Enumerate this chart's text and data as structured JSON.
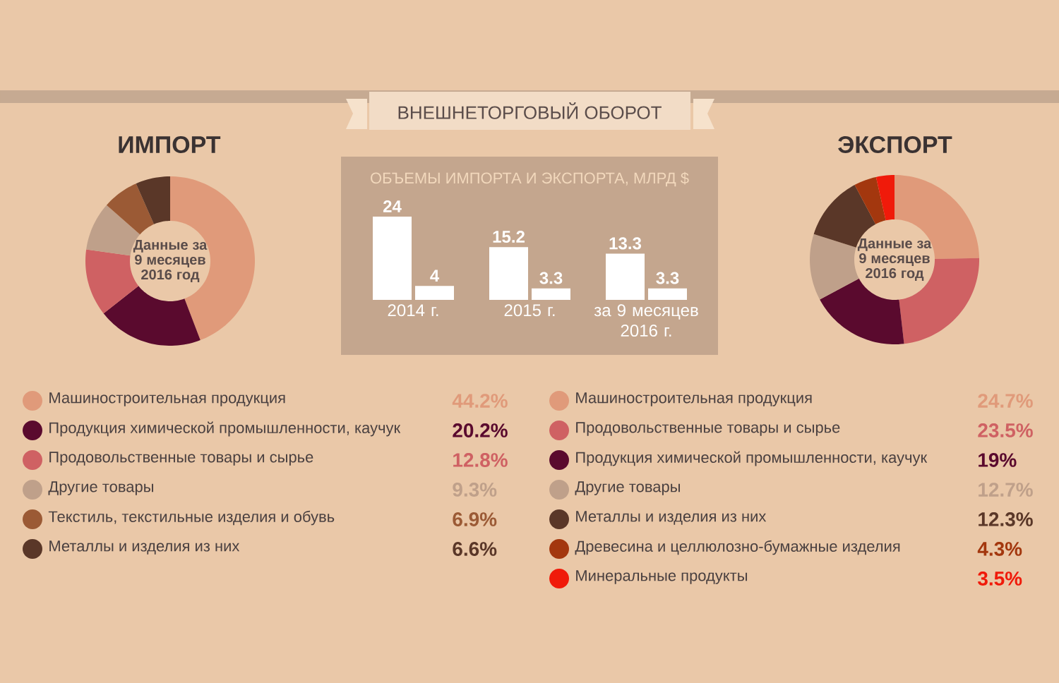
{
  "chart_data": [
    {
      "type": "other",
      "title": "ВНЕШНЕТОРГОВЫЙ ОБОРОТ"
    },
    {
      "type": "donut",
      "title": "ИМПОРТ",
      "categories": [
        "Машиностроительная продукция",
        "Продукция химической промышленности, каучук",
        "Продовольственные товары и сырье",
        "Другие товары",
        "Текстиль, текстильные изделия и обувь",
        "Металлы и изделия из них"
      ],
      "values": [
        44.2,
        20.2,
        12.8,
        9.3,
        6.9,
        6.6
      ],
      "value_labels": [
        "44.2%",
        "20.2%",
        "12.8%",
        "9.3%",
        "6.9%",
        "6.6%"
      ],
      "colors": [
        "#e09a7a",
        "#5a0a2e",
        "#cf6163",
        "#bfa08a",
        "#9b5a35",
        "#5a3728"
      ],
      "annotations": [
        "Данные за 9 месяцев 2016 год"
      ],
      "legend": "bottom"
    },
    {
      "type": "bar",
      "title": "ОБЪЕМЫ ИМПОРТА И ЭКСПОРТА, МЛРД $",
      "categories": [
        "2014 г.",
        "2015 г.",
        "за 9 месяцев 2016 г."
      ],
      "series": [
        {
          "color": "#ffffff",
          "values": [
            24,
            15.2,
            13.3
          ]
        },
        {
          "color": "#ffffff",
          "values": [
            4,
            3.3,
            3.3
          ]
        }
      ],
      "data_labels": true
    },
    {
      "type": "donut",
      "title": "ЭКСПОРТ",
      "categories": [
        "Машиностроительная продукция",
        "Продовольственные товары и сырье",
        "Продукция химической промышленности, каучук",
        "Другие товары",
        "Металлы и изделия из них",
        "Древесина и целлюлозно-бумажные изделия",
        "Минеральные продукты"
      ],
      "values": [
        24.7,
        23.5,
        19,
        12.7,
        12.3,
        4.3,
        3.5
      ],
      "value_labels": [
        "24.7%",
        "23.5%",
        "19%",
        "12.7%",
        "12.3%",
        "4.3%",
        "3.5%"
      ],
      "colors": [
        "#e09a7a",
        "#cf6163",
        "#5a0a2e",
        "#bfa08a",
        "#5a3728",
        "#a3370e",
        "#f01a0a"
      ],
      "annotations": [
        "Данные за 9 месяцев 2016 год"
      ],
      "legend": "bottom"
    }
  ]
}
